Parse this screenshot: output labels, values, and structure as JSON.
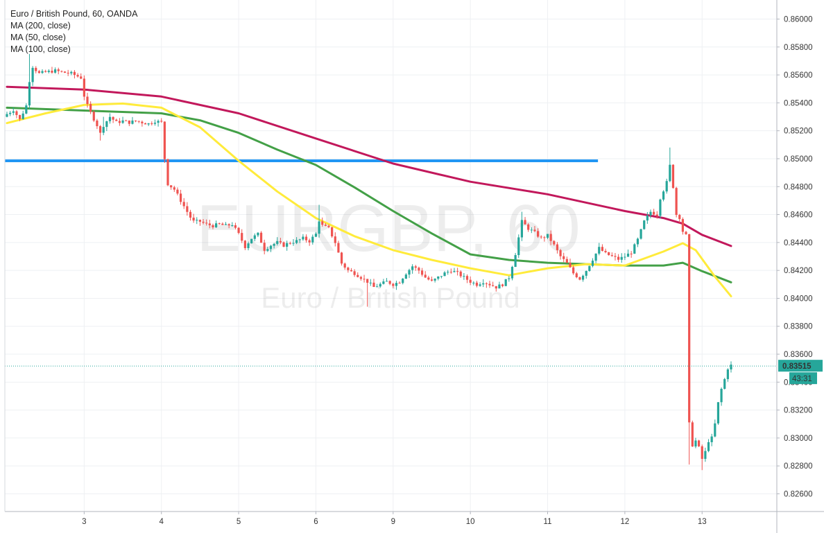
{
  "legend": {
    "title": "Euro / British Pound, 60, OANDA",
    "studies": [
      "MA (200, close)",
      "MA (50, close)",
      "MA (100, close)"
    ]
  },
  "watermark": {
    "symbol": "EURGBP, 60",
    "description": "Euro / British Pound"
  },
  "colors": {
    "up": "#26a69a",
    "down": "#ef5350",
    "ma200": "#c2185b",
    "ma50": "#ffeb3b",
    "ma100": "#43a047",
    "level": "#2196f3",
    "price_tag": "#26a69a"
  },
  "chart_data": {
    "type": "candlestick",
    "x_tick_labels": [
      "3",
      "4",
      "5",
      "6",
      "9",
      "10",
      "11",
      "12",
      "13"
    ],
    "x_tick_bar_index": [
      24,
      48,
      72,
      96,
      120,
      144,
      168,
      192,
      216
    ],
    "y_tick_labels": [
      "0.86000",
      "0.85800",
      "0.85600",
      "0.85400",
      "0.85200",
      "0.85000",
      "0.84800",
      "0.84600",
      "0.84400",
      "0.84200",
      "0.84000",
      "0.83800",
      "0.83600",
      "0.83400",
      "0.83200",
      "0.83000",
      "0.82800",
      "0.82600"
    ],
    "ylim": [
      0.8248,
      0.8608
    ],
    "last_price": "0.83515",
    "last_price_value": 0.83515,
    "countdown": "43:31",
    "horizontal_level": 0.84985,
    "level_range_bars": [
      0,
      183
    ],
    "close_path": [
      [
        0,
        0.8532
      ],
      [
        2,
        0.8535
      ],
      [
        4,
        0.8528
      ],
      [
        6,
        0.8538
      ],
      [
        7,
        0.8556
      ],
      [
        8,
        0.8566
      ],
      [
        10,
        0.8561
      ],
      [
        12,
        0.8562
      ],
      [
        15,
        0.8563
      ],
      [
        17,
        0.8562
      ],
      [
        20,
        0.8561
      ],
      [
        23,
        0.8558
      ],
      [
        24,
        0.8545
      ],
      [
        25,
        0.8538
      ],
      [
        26,
        0.8533
      ],
      [
        28,
        0.8524
      ],
      [
        29,
        0.8518
      ],
      [
        30,
        0.8524
      ],
      [
        32,
        0.853
      ],
      [
        34,
        0.8526
      ],
      [
        36,
        0.8527
      ],
      [
        38,
        0.8526
      ],
      [
        40,
        0.8527
      ],
      [
        42,
        0.8526
      ],
      [
        44,
        0.8525
      ],
      [
        46,
        0.8527
      ],
      [
        48,
        0.8526
      ],
      [
        49,
        0.85
      ],
      [
        50,
        0.8482
      ],
      [
        52,
        0.8478
      ],
      [
        54,
        0.847
      ],
      [
        56,
        0.8462
      ],
      [
        57,
        0.8458
      ],
      [
        58,
        0.8455
      ],
      [
        60,
        0.8455
      ],
      [
        62,
        0.8453
      ],
      [
        64,
        0.8452
      ],
      [
        66,
        0.8453
      ],
      [
        68,
        0.8452
      ],
      [
        70,
        0.8453
      ],
      [
        72,
        0.8446
      ],
      [
        74,
        0.8437
      ],
      [
        76,
        0.8443
      ],
      [
        78,
        0.8446
      ],
      [
        80,
        0.8435
      ],
      [
        82,
        0.8438
      ],
      [
        84,
        0.844
      ],
      [
        86,
        0.8438
      ],
      [
        88,
        0.844
      ],
      [
        90,
        0.8441
      ],
      [
        92,
        0.8443
      ],
      [
        94,
        0.8441
      ],
      [
        96,
        0.8446
      ],
      [
        97,
        0.8456
      ],
      [
        98,
        0.8452
      ],
      [
        100,
        0.845
      ],
      [
        102,
        0.844
      ],
      [
        104,
        0.8425
      ],
      [
        106,
        0.842
      ],
      [
        108,
        0.8418
      ],
      [
        110,
        0.8415
      ],
      [
        112,
        0.8412
      ],
      [
        114,
        0.8408
      ],
      [
        116,
        0.841
      ],
      [
        118,
        0.8412
      ],
      [
        120,
        0.841
      ],
      [
        122,
        0.8412
      ],
      [
        124,
        0.8418
      ],
      [
        126,
        0.8423
      ],
      [
        128,
        0.842
      ],
      [
        130,
        0.8415
      ],
      [
        132,
        0.8412
      ],
      [
        134,
        0.8415
      ],
      [
        136,
        0.8418
      ],
      [
        138,
        0.842
      ],
      [
        140,
        0.8418
      ],
      [
        142,
        0.8415
      ],
      [
        144,
        0.8412
      ],
      [
        146,
        0.841
      ],
      [
        148,
        0.8412
      ],
      [
        150,
        0.841
      ],
      [
        152,
        0.8408
      ],
      [
        154,
        0.841
      ],
      [
        156,
        0.8415
      ],
      [
        158,
        0.8432
      ],
      [
        160,
        0.8455
      ],
      [
        162,
        0.845
      ],
      [
        164,
        0.8447
      ],
      [
        166,
        0.8443
      ],
      [
        168,
        0.8445
      ],
      [
        170,
        0.8438
      ],
      [
        172,
        0.843
      ],
      [
        174,
        0.8425
      ],
      [
        176,
        0.8418
      ],
      [
        178,
        0.8414
      ],
      [
        180,
        0.842
      ],
      [
        182,
        0.8428
      ],
      [
        184,
        0.8436
      ],
      [
        186,
        0.8432
      ],
      [
        188,
        0.843
      ],
      [
        190,
        0.8428
      ],
      [
        192,
        0.843
      ],
      [
        194,
        0.8433
      ],
      [
        196,
        0.8442
      ],
      [
        198,
        0.8455
      ],
      [
        200,
        0.8462
      ],
      [
        202,
        0.846
      ],
      [
        203,
        0.8472
      ],
      [
        205,
        0.8483
      ],
      [
        206,
        0.8495
      ],
      [
        207,
        0.848
      ],
      [
        208,
        0.846
      ],
      [
        209,
        0.8458
      ],
      [
        210,
        0.8448
      ],
      [
        211,
        0.8445
      ],
      [
        212,
        0.831
      ],
      [
        213,
        0.8295
      ],
      [
        214,
        0.8298
      ],
      [
        215,
        0.8293
      ],
      [
        216,
        0.8285
      ],
      [
        217,
        0.829
      ],
      [
        218,
        0.8298
      ],
      [
        219,
        0.83
      ],
      [
        220,
        0.831
      ],
      [
        221,
        0.8325
      ],
      [
        222,
        0.8335
      ],
      [
        223,
        0.8342
      ],
      [
        224,
        0.835
      ],
      [
        225,
        0.8352
      ]
    ],
    "spike_highs": [
      [
        7,
        0.8575
      ],
      [
        30,
        0.853
      ],
      [
        97,
        0.8467
      ],
      [
        160,
        0.8462
      ],
      [
        206,
        0.8508
      ]
    ],
    "spike_lows": [
      [
        29,
        0.8513
      ],
      [
        112,
        0.8394
      ],
      [
        212,
        0.8281
      ],
      [
        216,
        0.8277
      ]
    ],
    "ma_200": [
      [
        0,
        0.85515
      ],
      [
        24,
        0.85495
      ],
      [
        48,
        0.85445
      ],
      [
        72,
        0.85325
      ],
      [
        96,
        0.85145
      ],
      [
        120,
        0.84965
      ],
      [
        144,
        0.84835
      ],
      [
        168,
        0.84745
      ],
      [
        192,
        0.84625
      ],
      [
        204,
        0.84575
      ],
      [
        210,
        0.84535
      ],
      [
        216,
        0.84455
      ],
      [
        225,
        0.84375
      ]
    ],
    "ma_50": [
      [
        0,
        0.85255
      ],
      [
        12,
        0.85325
      ],
      [
        24,
        0.85385
      ],
      [
        36,
        0.85395
      ],
      [
        48,
        0.85365
      ],
      [
        60,
        0.85225
      ],
      [
        72,
        0.84985
      ],
      [
        84,
        0.84765
      ],
      [
        96,
        0.84575
      ],
      [
        108,
        0.84445
      ],
      [
        120,
        0.84345
      ],
      [
        132,
        0.84275
      ],
      [
        144,
        0.84215
      ],
      [
        156,
        0.84165
      ],
      [
        168,
        0.84215
      ],
      [
        180,
        0.84245
      ],
      [
        192,
        0.84235
      ],
      [
        204,
        0.84335
      ],
      [
        210,
        0.84395
      ],
      [
        214,
        0.84345
      ],
      [
        220,
        0.84155
      ],
      [
        225,
        0.84015
      ]
    ],
    "ma_100": [
      [
        0,
        0.85365
      ],
      [
        24,
        0.85345
      ],
      [
        48,
        0.85325
      ],
      [
        60,
        0.85275
      ],
      [
        72,
        0.85185
      ],
      [
        84,
        0.85065
      ],
      [
        96,
        0.84955
      ],
      [
        108,
        0.84795
      ],
      [
        120,
        0.84625
      ],
      [
        132,
        0.84465
      ],
      [
        144,
        0.84315
      ],
      [
        156,
        0.84275
      ],
      [
        168,
        0.84255
      ],
      [
        180,
        0.84245
      ],
      [
        192,
        0.84235
      ],
      [
        204,
        0.84235
      ],
      [
        210,
        0.84255
      ],
      [
        216,
        0.84195
      ],
      [
        225,
        0.84115
      ]
    ]
  }
}
